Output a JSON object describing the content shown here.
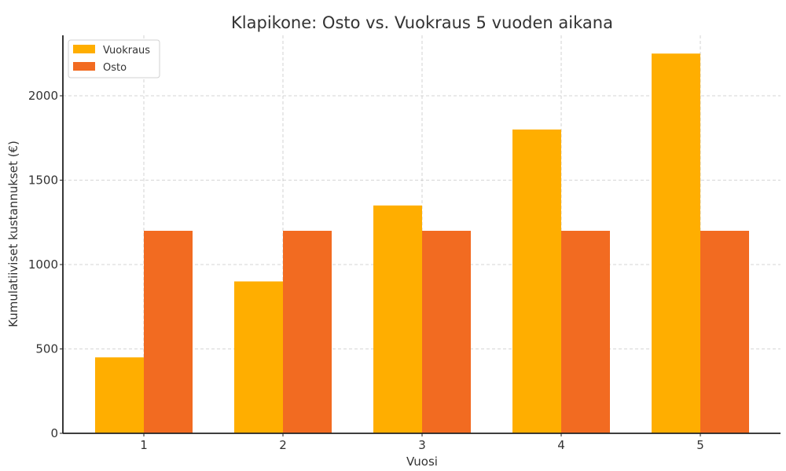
{
  "chart_data": {
    "type": "bar",
    "title": "Klapikone: Osto vs. Vuokraus 5 vuoden aikana",
    "xlabel": "Vuosi",
    "ylabel": "Kumulatiiviset kustannukset (€)",
    "categories": [
      "1",
      "2",
      "3",
      "4",
      "5"
    ],
    "series": [
      {
        "name": "Vuokraus",
        "color": "#FFAE00",
        "values": [
          450,
          900,
          1350,
          1800,
          2250
        ]
      },
      {
        "name": "Osto",
        "color": "#F26B21",
        "values": [
          1200,
          1200,
          1200,
          1200,
          1200
        ]
      }
    ],
    "yticks": [
      0,
      500,
      1000,
      1500,
      2000
    ],
    "ylim": [
      0,
      2362
    ],
    "grid": true,
    "legend_position": "upper left"
  }
}
